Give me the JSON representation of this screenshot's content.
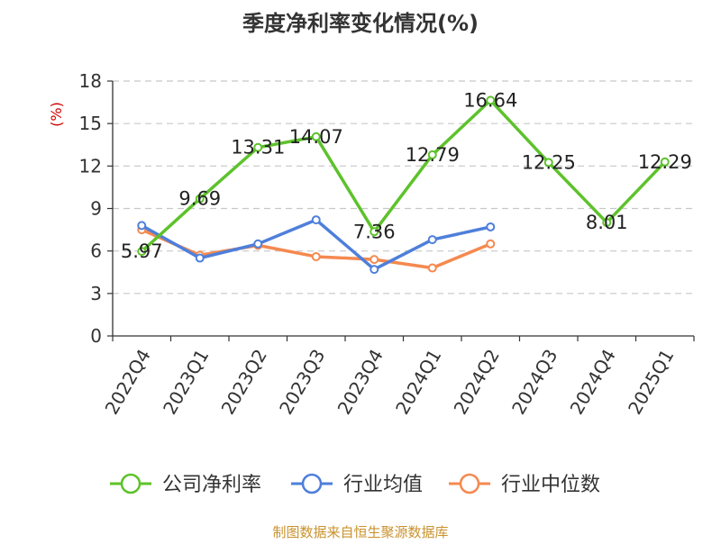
{
  "chart_data": {
    "type": "line",
    "title": "季度净利率变化情况(%)",
    "ylabel": "(%)",
    "ylim": [
      0,
      18
    ],
    "yticks": [
      0,
      3,
      6,
      9,
      12,
      15,
      18
    ],
    "grid": true,
    "legend_position": "bottom",
    "categories": [
      "2022Q4",
      "2023Q1",
      "2023Q2",
      "2023Q3",
      "2023Q4",
      "2024Q1",
      "2024Q2",
      "2024Q3",
      "2024Q4",
      "2025Q1"
    ],
    "series": [
      {
        "name": "公司净利率",
        "color": "#5dc22b",
        "values": [
          5.97,
          9.69,
          13.31,
          14.07,
          7.36,
          12.79,
          16.64,
          12.25,
          8.01,
          12.29
        ],
        "labels": [
          "5.97",
          "9.69",
          "13.31",
          "14.07",
          "7.36",
          "12.79",
          "16.64",
          "12.25",
          "8.01",
          "12.29"
        ]
      },
      {
        "name": "行业均值",
        "color": "#4e7fdb",
        "values": [
          7.8,
          5.5,
          6.5,
          8.2,
          4.7,
          6.8,
          7.7,
          null,
          null,
          null
        ]
      },
      {
        "name": "行业中位数",
        "color": "#f5894f",
        "values": [
          7.5,
          5.7,
          6.4,
          5.6,
          5.4,
          4.8,
          6.5,
          null,
          null,
          null
        ]
      }
    ]
  },
  "ylabel_color": "#cc0000",
  "source_text": "制图数据来自恒生聚源数据库",
  "source_color": "#c9922e"
}
